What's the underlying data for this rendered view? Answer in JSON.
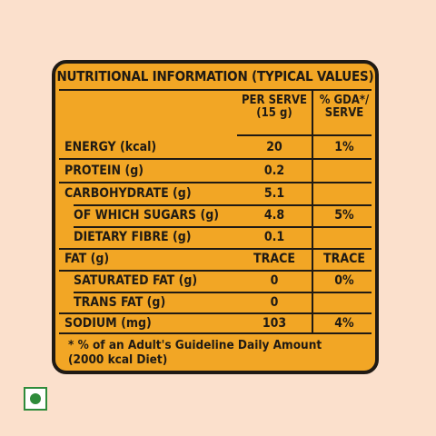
{
  "panel": {
    "title": "NUTRITIONAL INFORMATION (TYPICAL VALUES)",
    "columns": {
      "per_serve_line1": "PER SERVE",
      "per_serve_line2": "(15 g)",
      "gda_line1": "% GDA*/",
      "gda_line2": "SERVE"
    },
    "rows": [
      {
        "name": "ENERGY (kcal)",
        "value": "20",
        "gda": "1%"
      },
      {
        "name": "PROTEIN (g)",
        "value": "0.2",
        "gda": ""
      },
      {
        "name": "CARBOHYDRATE (g)",
        "value": "5.1",
        "gda": ""
      },
      {
        "name": "OF WHICH SUGARS (g)",
        "value": "4.8",
        "gda": "5%"
      },
      {
        "name": "DIETARY FIBRE (g)",
        "value": "0.1",
        "gda": ""
      },
      {
        "name": "FAT (g)",
        "value": "TRACE",
        "gda": "TRACE"
      },
      {
        "name": "SATURATED FAT (g)",
        "value": "0",
        "gda": "0%"
      },
      {
        "name": "TRANS FAT (g)",
        "value": "0",
        "gda": ""
      },
      {
        "name": "SODIUM (mg)",
        "value": "103",
        "gda": "4%"
      }
    ],
    "footnote_line1": "* % of an Adult's Guideline Daily Amount",
    "footnote_line2": "(2000 kcal Diet)"
  },
  "colors": {
    "panel_background": "#f2a625",
    "page_background": "#fbe0cc",
    "ink": "#1f1a14",
    "veg_mark": "#2e8b3a"
  },
  "icons": {
    "veg_mark": "vegetarian-symbol-icon"
  }
}
